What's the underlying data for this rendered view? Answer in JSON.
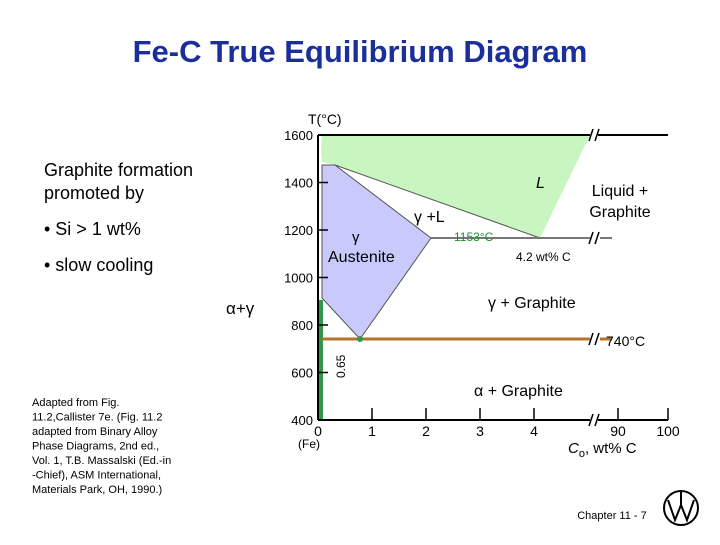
{
  "title": "Fe-C True Equilibrium Diagram",
  "intro": [
    "Graphite formation",
    "promoted by"
  ],
  "bullets": [
    "• Si > 1 wt%",
    "• slow cooling"
  ],
  "citation": [
    "Adapted from Fig.",
    "11.2,Callister 7e. (Fig. 11.2",
    "adapted from Binary Alloy",
    "Phase Diagrams, 2nd ed.,",
    "Vol. 1, T.B. Massalski (Ed.-in",
    "-Chief), ASM International,",
    "Materials Park, OH, 1990.)"
  ],
  "diagram": {
    "ylabel": "T(°C)",
    "yticks": [
      1600,
      1400,
      1200,
      1000,
      800,
      600,
      400
    ],
    "xticks": [
      0,
      1,
      2,
      3,
      4,
      90,
      100
    ],
    "xlabel": {
      "main": "C",
      "sub": "o",
      "rest": ", wt% C"
    },
    "origin_label": "(Fe)",
    "regions": {
      "liquid": "L",
      "gamma_liquid": "γ +L",
      "gamma": "γ",
      "austenite": "Austenite",
      "liquid_graphite": [
        "Liquid +",
        "Graphite"
      ],
      "gamma_graphite": "γ + Graphite",
      "alpha_gamma": "α+γ",
      "alpha_graphite": "α + Graphite"
    },
    "annotations": {
      "eutectic_temp": "1153°C",
      "eutectic_comp": "4.2 wt% C",
      "eutectoid_temp": "740°C",
      "eutectoid_comp": "0.65"
    }
  },
  "footer": "Chapter 11 - 7"
}
